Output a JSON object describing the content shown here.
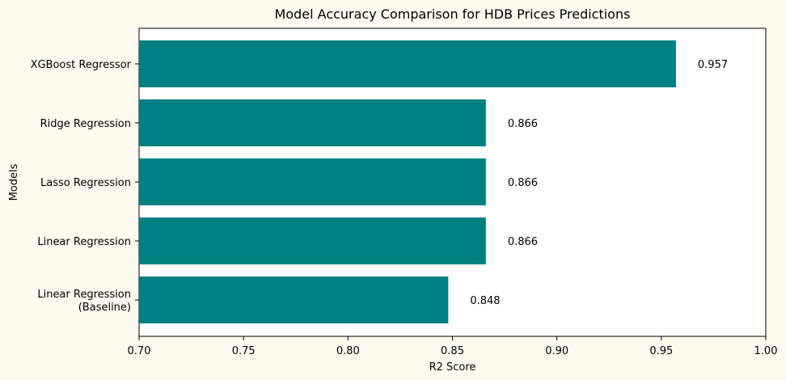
{
  "colors": {
    "background": "#fffaf0",
    "plot_area": "#ffffff",
    "bar": "#008080",
    "axis": "#000000"
  },
  "chart_data": {
    "type": "bar",
    "orientation": "horizontal",
    "title": "Model Accuracy Comparison for HDB Prices Predictions",
    "xlabel": "R2 Score",
    "ylabel": "Models",
    "xlim": [
      0.7,
      1.0
    ],
    "xticks": [
      "0.70",
      "0.75",
      "0.80",
      "0.85",
      "0.90",
      "0.95",
      "1.00"
    ],
    "categories": [
      "Linear Regression\n(Baseline)",
      "Linear Regression",
      "Lasso Regression",
      "Ridge Regression",
      "XGBoost Regressor"
    ],
    "values": [
      0.848,
      0.866,
      0.866,
      0.866,
      0.957
    ],
    "value_labels": [
      "0.848",
      "0.866",
      "0.866",
      "0.866",
      "0.957"
    ],
    "grid": false,
    "legend": "none"
  }
}
